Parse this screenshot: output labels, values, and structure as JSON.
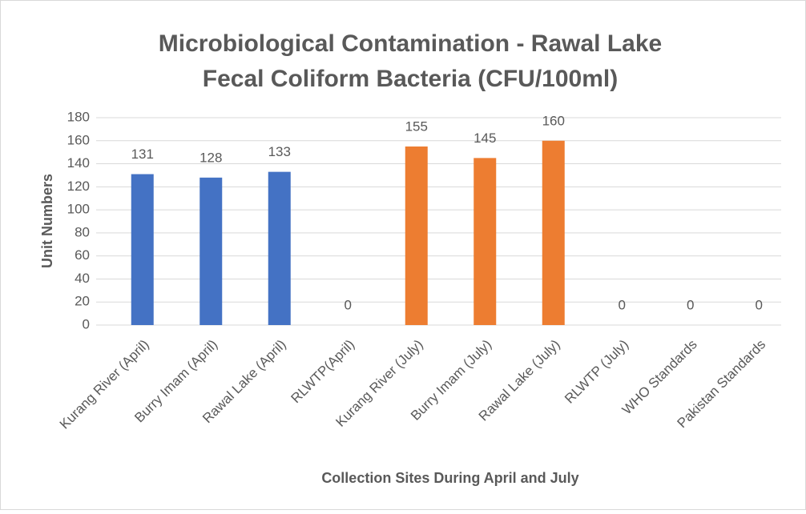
{
  "chart_data": {
    "type": "bar",
    "title": "Microbiological Contamination - Rawal Lake",
    "subtitle": "Fecal Coliform Bacteria (CFU/100ml)",
    "x_label": "Collection Sites During April and July",
    "y_label": "Unit Numbers",
    "categories": [
      "Kurang River (April)",
      "Burry Imam (April)",
      "Rawal Lake (April)",
      "RLWTP(April)",
      "Kurang River (July)",
      "Burry Imam (July)",
      "Rawal Lake (July)",
      "RLWTP (July)",
      "WHO Standards",
      "Pakistan Standards"
    ],
    "values": [
      131,
      128,
      133,
      0,
      155,
      145,
      160,
      0,
      0,
      0
    ],
    "colors": [
      "#4472c4",
      "#4472c4",
      "#4472c4",
      "#4472c4",
      "#ed7d31",
      "#ed7d31",
      "#ed7d31",
      "#ed7d31",
      "#ed7d31",
      "#ed7d31"
    ],
    "ylim": [
      0,
      180
    ],
    "yticks": [
      0,
      20,
      40,
      60,
      80,
      100,
      120,
      140,
      160,
      180
    ],
    "grid": true
  }
}
